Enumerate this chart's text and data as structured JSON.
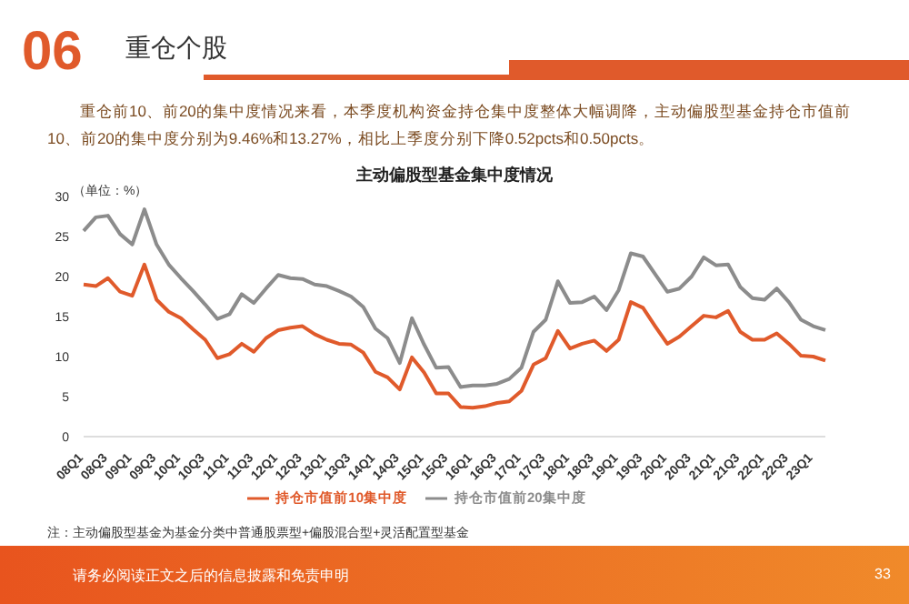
{
  "chart_data": {
    "type": "line",
    "title": "主动偏股型基金集中度情况",
    "ylabel": "（单位：%）",
    "annotations": [
      "06",
      "重仓个股",
      "重仓前10、前20的集中度情况来看，本季度机构资金持仓集中度整体大幅调降，主动偏股型基金持仓市值前10、前20的集中度分别为9.46%和13.27%，相比上季度分别下降0.52pcts和0.50pcts。",
      "注：主动偏股型基金为基金分类中普通股票型+偏股混合型+灵活配置型基金",
      "请务必阅读正文之后的信息披露和免责申明",
      "33"
    ],
    "categories": [
      "08Q1",
      null,
      "08Q3",
      null,
      "09Q1",
      null,
      "09Q3",
      null,
      "10Q1",
      null,
      "10Q3",
      null,
      "11Q1",
      null,
      "11Q3",
      null,
      "12Q1",
      null,
      "12Q3",
      null,
      "13Q1",
      null,
      "13Q3",
      null,
      "14Q1",
      null,
      "14Q3",
      null,
      "15Q1",
      null,
      "15Q3",
      null,
      "16Q1",
      null,
      "16Q3",
      null,
      "17Q1",
      null,
      "17Q3",
      null,
      "18Q1",
      null,
      "18Q3",
      null,
      "19Q1",
      null,
      "19Q3",
      null,
      "20Q1",
      null,
      "20Q3",
      null,
      "21Q1",
      null,
      "21Q3",
      null,
      "22Q1",
      null,
      "22Q3",
      null,
      "23Q1",
      null
    ],
    "series": [
      {
        "name": "持仓市值前10集中度",
        "color": "#e05a2b",
        "values": [
          19.0,
          18.8,
          19.8,
          18.1,
          17.6,
          21.5,
          17.1,
          15.6,
          14.8,
          13.4,
          12.1,
          9.8,
          10.3,
          11.6,
          10.6,
          12.3,
          13.3,
          13.6,
          13.8,
          12.8,
          12.1,
          11.6,
          11.5,
          10.5,
          8.1,
          7.4,
          5.9,
          9.9,
          8.0,
          5.4,
          5.4,
          3.7,
          3.6,
          3.8,
          4.2,
          4.4,
          5.7,
          9.0,
          9.8,
          13.2,
          11.0,
          11.6,
          12.0,
          10.7,
          12.1,
          16.8,
          16.1,
          13.8,
          11.6,
          12.5,
          13.8,
          15.1,
          14.9,
          15.7,
          13.1,
          12.1,
          12.1,
          12.9,
          11.6,
          10.1,
          10.0,
          9.5
        ]
      },
      {
        "name": "持仓市值前20集中度",
        "color": "#8c8c8c",
        "values": [
          25.7,
          27.4,
          27.6,
          25.3,
          24.0,
          28.4,
          24.0,
          21.5,
          19.8,
          18.2,
          16.5,
          14.7,
          15.3,
          17.8,
          16.7,
          18.5,
          20.2,
          19.8,
          19.7,
          19.0,
          18.8,
          18.2,
          17.5,
          16.2,
          13.5,
          12.3,
          9.2,
          14.8,
          11.5,
          8.6,
          8.7,
          6.2,
          6.4,
          6.4,
          6.6,
          7.2,
          8.6,
          13.1,
          14.6,
          19.4,
          16.7,
          16.8,
          17.5,
          15.8,
          18.3,
          22.9,
          22.5,
          20.3,
          18.1,
          18.5,
          20.0,
          22.4,
          21.4,
          21.5,
          18.7,
          17.3,
          17.1,
          18.5,
          16.8,
          14.6,
          13.8,
          13.3
        ]
      }
    ],
    "ylim": [
      0,
      30
    ],
    "yticks": [
      0,
      5,
      10,
      15,
      20,
      25,
      30
    ],
    "legend": "bottom",
    "marker": "none",
    "line_style": "solid"
  }
}
